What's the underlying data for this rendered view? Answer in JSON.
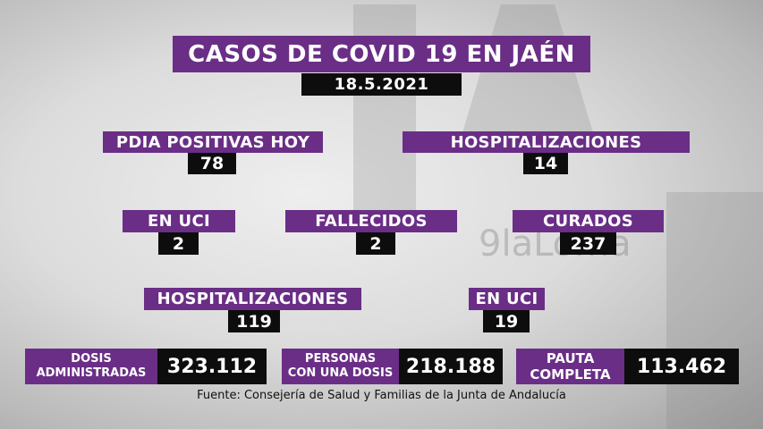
{
  "title": "CASOS DE COVID 19 EN JAÉN",
  "date": "18.5.2021",
  "stats": {
    "pdia_label": "PDIA POSITIVAS HOY",
    "pdia_value": "78",
    "hosp_label": "HOSPITALIZACIONES",
    "hosp_value": "14",
    "uci_label": "EN UCI",
    "uci_value": "2",
    "fallecidos_label": "FALLECIDOS",
    "fallecidos_value": "2",
    "curados_label": "CURADOS",
    "curados_value": "237",
    "hosp_total_label": "HOSPITALIZACIONES",
    "hosp_total_value": "119",
    "uci_total_label": "EN UCI",
    "uci_total_value": "19"
  },
  "vaccination": {
    "dosis_label_1": "DOSIS",
    "dosis_label_2": "ADMINISTRADAS",
    "dosis_value": "323.112",
    "personas_label_1": "PERSONAS",
    "personas_label_2": "CON UNA DOSIS",
    "personas_value": "218.188",
    "pauta_label_1": "PAUTA",
    "pauta_label_2": "COMPLETA",
    "pauta_value": "113.462"
  },
  "source": "Fuente: Consejería de Salud y Familias de la Junta de Andalucía",
  "watermark": "9laLoma",
  "colors": {
    "purple": "#6a2e86",
    "black": "#0d0d0d"
  }
}
